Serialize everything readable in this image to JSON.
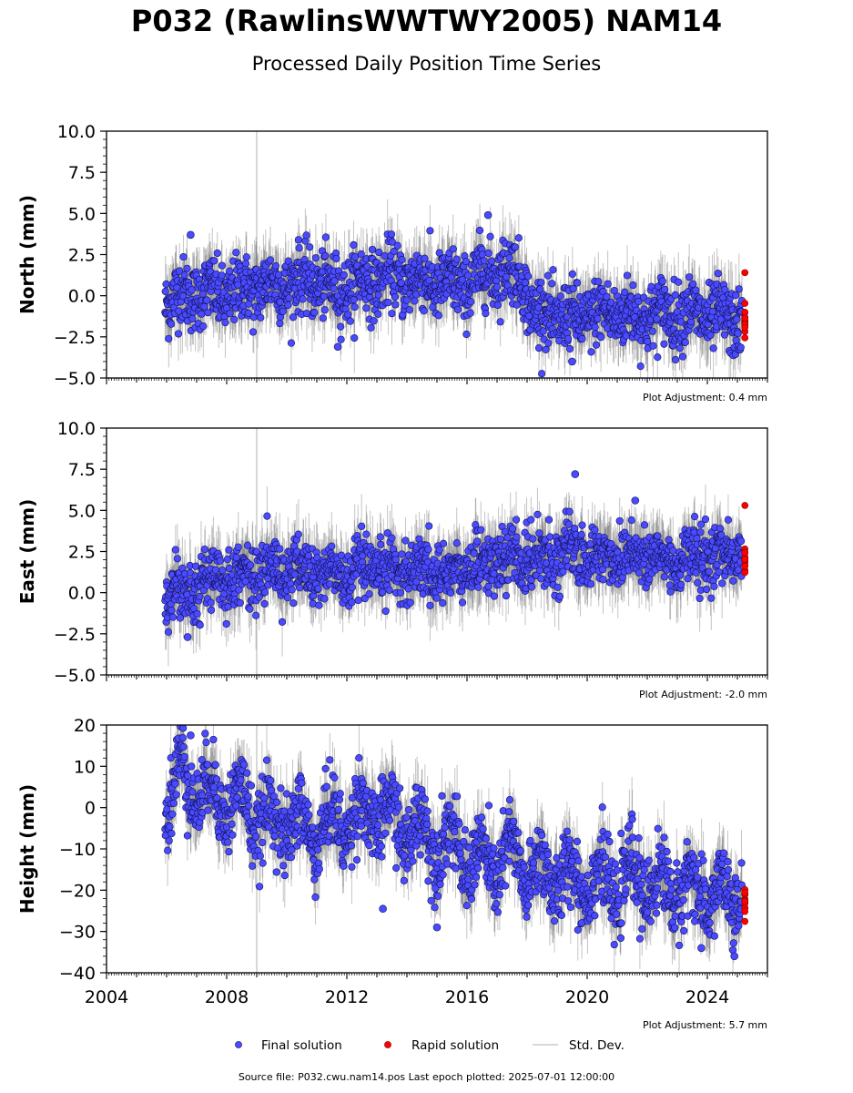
{
  "header": {
    "title": "P032 (RawlinsWWTWY2005) NAM14",
    "subtitle": "Processed Daily Position Time Series"
  },
  "footer": {
    "source": "Source file: P032.cwu.nam14.pos  Last epoch plotted: 2025-07-01 12:00:00"
  },
  "legend": {
    "final": "Final solution",
    "rapid": "Rapid solution",
    "std": "Std. Dev."
  },
  "colors": {
    "final": "#4a4aff",
    "rapid": "#ff0000",
    "std_dev": "#a0a0a0"
  },
  "chart_data": [
    {
      "type": "scatter",
      "ylabel": "North (mm)",
      "ylim": [
        -5,
        10
      ],
      "yticks": [
        "10.0",
        "7.5",
        "5.0",
        "2.5",
        "0.0",
        "−2.5",
        "−5.0"
      ],
      "xlim": [
        2004,
        2026
      ],
      "adjustment": "Plot Adjustment: 0.4 mm",
      "series": [
        {
          "name": "Final solution",
          "x": [
            2006.0,
            2006.5,
            2007.0,
            2007.5,
            2008.0,
            2008.5,
            2009.0,
            2009.5,
            2010.0,
            2010.5,
            2011.0,
            2011.5,
            2012.0,
            2012.5,
            2013.0,
            2013.5,
            2014.0,
            2014.5,
            2015.0,
            2015.5,
            2016.0,
            2016.5,
            2017.0,
            2017.5,
            2017.9,
            2018.2,
            2018.5,
            2019.0,
            2019.5,
            2020.0,
            2020.5,
            2021.0,
            2021.5,
            2022.0,
            2022.5,
            2023.0,
            2023.5,
            2024.0,
            2024.5,
            2025.0
          ],
          "y": [
            -0.3,
            0.0,
            0.2,
            0.1,
            0.0,
            0.3,
            0.5,
            0.6,
            0.7,
            0.8,
            0.9,
            0.3,
            0.6,
            0.8,
            1.0,
            1.1,
            1.0,
            0.9,
            0.8,
            0.6,
            0.7,
            1.2,
            1.5,
            1.4,
            1.0,
            -1.2,
            -1.1,
            -1.3,
            -1.4,
            -1.2,
            -1.1,
            -1.0,
            -1.3,
            -1.2,
            -1.1,
            -1.0,
            -1.1,
            -1.2,
            -1.4,
            -1.5
          ]
        },
        {
          "name": "Rapid solution",
          "x": [
            2025.25
          ],
          "y": [
            -1.5
          ]
        }
      ],
      "outliers": [
        {
          "x": 2006.8,
          "y": 3.7
        },
        {
          "x": 2016.7,
          "y": 4.9
        },
        {
          "x": 2011.7,
          "y": -3.1
        },
        {
          "x": 2019.5,
          "y": -4.0
        },
        {
          "x": 2025.25,
          "y": 1.4
        }
      ]
    },
    {
      "type": "scatter",
      "ylabel": "East (mm)",
      "ylim": [
        -5,
        10
      ],
      "yticks": [
        "10.0",
        "7.5",
        "5.0",
        "2.5",
        "0.0",
        "−2.5",
        "−5.0"
      ],
      "xlim": [
        2004,
        2026
      ],
      "adjustment": "Plot Adjustment: -2.0 mm",
      "series": [
        {
          "name": "Final solution",
          "x": [
            2006.0,
            2006.5,
            2007.0,
            2007.5,
            2008.0,
            2008.5,
            2009.0,
            2009.5,
            2010.0,
            2010.5,
            2011.0,
            2011.5,
            2012.0,
            2012.5,
            2013.0,
            2013.5,
            2014.0,
            2014.5,
            2015.0,
            2015.5,
            2016.0,
            2016.5,
            2017.0,
            2017.5,
            2018.0,
            2018.5,
            2019.0,
            2019.5,
            2020.0,
            2020.5,
            2021.0,
            2021.5,
            2022.0,
            2022.5,
            2023.0,
            2023.5,
            2024.0,
            2024.5,
            2025.0
          ],
          "y": [
            0.0,
            0.2,
            0.5,
            0.7,
            0.9,
            1.0,
            1.2,
            1.3,
            1.4,
            1.3,
            1.2,
            1.1,
            1.0,
            1.2,
            1.3,
            1.4,
            1.5,
            1.4,
            1.2,
            1.1,
            1.5,
            1.8,
            1.9,
            2.0,
            2.1,
            2.2,
            2.3,
            2.4,
            2.2,
            2.1,
            2.3,
            2.4,
            2.2,
            1.9,
            2.0,
            2.1,
            2.2,
            2.3,
            2.4
          ]
        },
        {
          "name": "Rapid solution",
          "x": [
            2025.25
          ],
          "y": [
            2.2
          ]
        }
      ],
      "outliers": [
        {
          "x": 2019.6,
          "y": 7.2
        },
        {
          "x": 2021.6,
          "y": 5.6
        },
        {
          "x": 2006.7,
          "y": -2.7
        },
        {
          "x": 2025.25,
          "y": 5.3
        }
      ]
    },
    {
      "type": "scatter",
      "ylabel": "Height (mm)",
      "ylim": [
        -40,
        20
      ],
      "yticks": [
        "20",
        "10",
        "0",
        "−10",
        "−20",
        "−30",
        "−40"
      ],
      "xlim": [
        2004,
        2026
      ],
      "xticks": [
        "2004",
        "2008",
        "2012",
        "2016",
        "2020",
        "2024"
      ],
      "adjustment": "Plot Adjustment: 5.7 mm",
      "series": [
        {
          "name": "Final solution",
          "x": [
            2006.0,
            2006.5,
            2007.0,
            2007.5,
            2008.0,
            2008.5,
            2009.0,
            2009.5,
            2010.0,
            2010.5,
            2011.0,
            2011.5,
            2012.0,
            2012.5,
            2013.0,
            2013.5,
            2014.0,
            2014.5,
            2015.0,
            2015.5,
            2016.0,
            2016.5,
            2017.0,
            2017.5,
            2018.0,
            2018.5,
            2019.0,
            2019.5,
            2020.0,
            2020.5,
            2021.0,
            2021.5,
            2022.0,
            2022.5,
            2023.0,
            2023.5,
            2024.0,
            2024.5,
            2025.0
          ],
          "y": [
            2,
            8,
            5,
            3,
            2,
            1,
            -2,
            -4,
            -3,
            -5,
            -6,
            -4,
            -3,
            -2,
            -1,
            -3,
            -5,
            -6,
            -8,
            -9,
            -12,
            -14,
            -13,
            -12,
            -15,
            -17,
            -16,
            -18,
            -17,
            -18,
            -19,
            -17,
            -18,
            -20,
            -19,
            -20,
            -21,
            -22,
            -21
          ]
        },
        {
          "name": "Rapid solution",
          "x": [
            2025.25
          ],
          "y": [
            -22
          ]
        }
      ],
      "outliers": [
        {
          "x": 2006.8,
          "y": 17.5
        },
        {
          "x": 2013.2,
          "y": -24.5
        },
        {
          "x": 2015.0,
          "y": -29.0
        },
        {
          "x": 2023.8,
          "y": -34.0
        },
        {
          "x": 2024.9,
          "y": -36.0
        }
      ]
    }
  ]
}
